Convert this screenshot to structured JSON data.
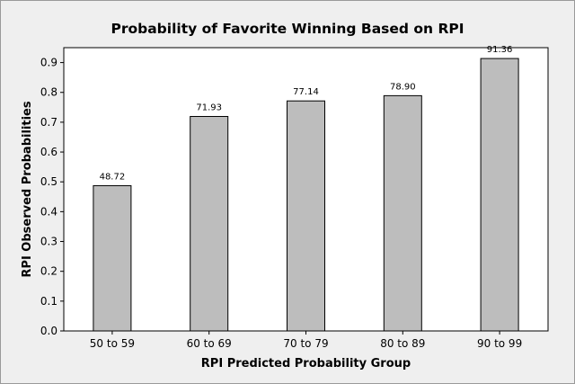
{
  "chart_data": {
    "type": "bar",
    "title": "Probability of Favorite Winning Based on RPI",
    "xlabel": "RPI Predicted Probability Group",
    "ylabel": "RPI Observed Probabilities",
    "categories": [
      "50 to 59",
      "60 to 69",
      "70 to 79",
      "80 to 89",
      "90 to 99"
    ],
    "values": [
      0.4872,
      0.7193,
      0.7714,
      0.789,
      0.9136
    ],
    "data_labels": [
      "48.72",
      "71.93",
      "77.14",
      "78.90",
      "91.36"
    ],
    "ylim": [
      0,
      0.95
    ],
    "yticks": [
      "0.0",
      "0.1",
      "0.2",
      "0.3",
      "0.4",
      "0.5",
      "0.6",
      "0.7",
      "0.8",
      "0.9"
    ],
    "grid": false,
    "legend": "none",
    "colors": {
      "bar_fill": "#bdbdbd",
      "bar_stroke": "#000000",
      "plot_background": "#ffffff",
      "outer_background": "#efefef"
    }
  }
}
